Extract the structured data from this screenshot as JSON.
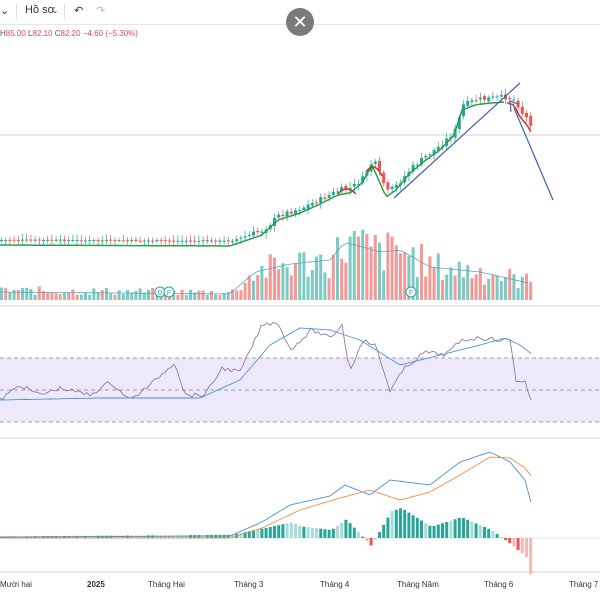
{
  "toolbar": {
    "dropdown_chevron": "chevron-down-icon",
    "profile_label": "Hồ sơ",
    "undo_icon": "undo-icon",
    "redo_icon": "redo-icon",
    "close_icon": "close-icon",
    "close_symbol": "✕"
  },
  "ohlc": {
    "h_label": "H",
    "h_value": "85.00",
    "l_label": "L",
    "l_value": "82.10",
    "c_label": "C",
    "c_value": "82.20",
    "change": "−4.60 (−5.30%)"
  },
  "colors": {
    "up": "#26a69a",
    "down": "#ef5350",
    "trend_green": "#2e9e47",
    "trend_red": "#c0392b",
    "annotation_blue": "#3f5fae",
    "rsi_line": "#8e7aa8",
    "rsi_ma": "#4a90e2",
    "rsi_band": "#ede9fa",
    "macd_line": "#4a90e2",
    "signal_line": "#f0913f",
    "hist_up": "#26a69a",
    "hist_up_light": "#a7dcd7",
    "hist_down": "#ef5350",
    "hist_down_light": "#f4b7b5"
  },
  "markers": {
    "dividend_letters": [
      "D",
      "F",
      "F"
    ]
  },
  "x_axis_labels": [
    "Mười hai",
    "2025",
    "Tháng Hai",
    "Tháng 3",
    "Tháng 4",
    "Tháng Năm",
    "Tháng 6",
    "Tháng 7"
  ]
}
